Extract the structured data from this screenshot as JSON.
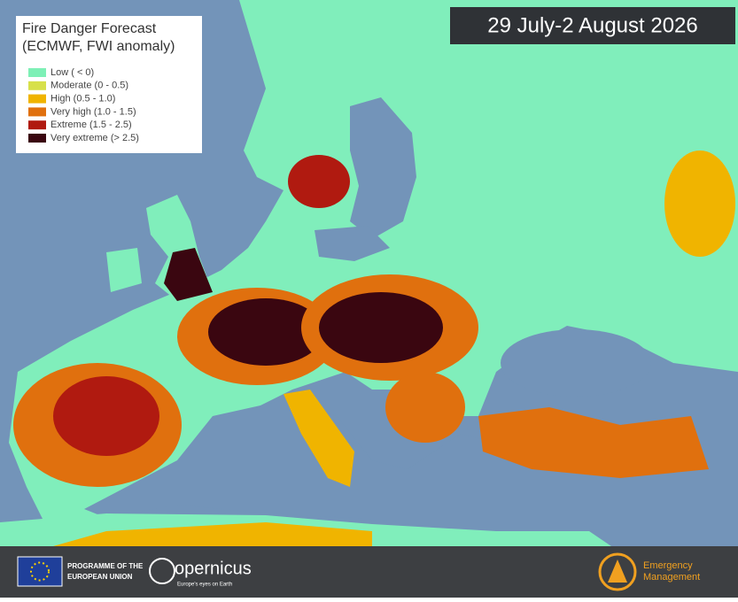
{
  "legend": {
    "title": "Fire Danger Forecast",
    "subtitle": "(ECMWF, FWI anomaly)",
    "items": [
      {
        "label": "Low ( < 0)",
        "color": "#7ef0b6"
      },
      {
        "label": "Moderate (0 - 0.5)",
        "color": "#d7e04a"
      },
      {
        "label": "High (0.5 - 1.0)",
        "color": "#f0b400"
      },
      {
        "label": "Very high (1.0 - 1.5)",
        "color": "#e0700e"
      },
      {
        "label": "Extreme (1.5 - 2.5)",
        "color": "#b01a10"
      },
      {
        "label": "Very extreme (> 2.5)",
        "color": "#3a0610"
      }
    ]
  },
  "date": "29 July-2 August 2026",
  "footer": {
    "programme_line1": "PROGRAMME OF THE",
    "programme_line2": "EUROPEAN UNION",
    "copernicus": "opernicus",
    "copernicus_tagline": "Europe's eyes on Earth",
    "ems_line1": "Emergency",
    "ems_line2": "Management"
  }
}
